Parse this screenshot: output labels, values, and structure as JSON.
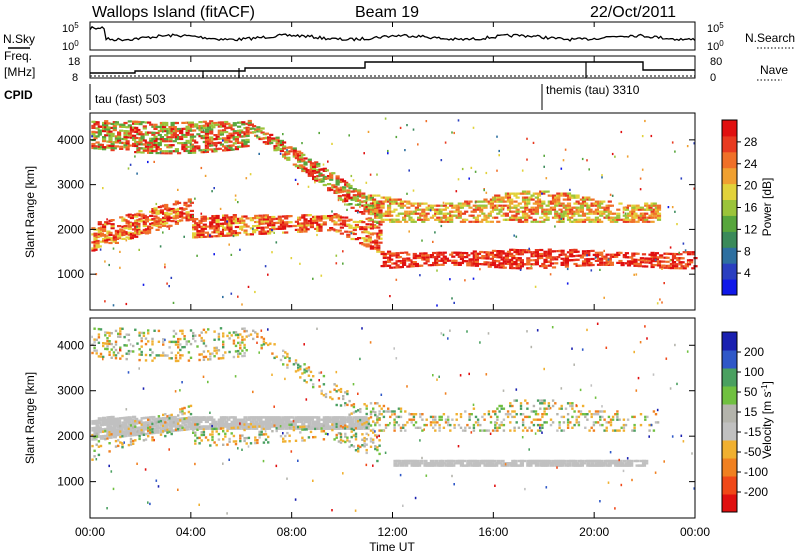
{
  "title": {
    "station": "Wallops Island (fitACF)",
    "beam": "Beam 19",
    "date": "22/Oct/2011"
  },
  "top_panels": {
    "nsky_label": "N.Sky",
    "nsearch_label": "N.Search",
    "freq_label_1": "Freq.",
    "freq_label_2": "[MHz]",
    "nave_label": "Nave",
    "cpid_label": "CPID",
    "nsky_ticks": [
      "10^5",
      "10^0"
    ],
    "nsearch_ticks": [
      "10^5",
      "10^0"
    ],
    "freq_ticks": [
      "18",
      "8"
    ],
    "nave_ticks": [
      "80",
      "0"
    ],
    "cpid_programs": [
      {
        "label": "tau (fast) 503",
        "start_hour": 0
      },
      {
        "label": "themis (tau) 3310",
        "start_hour": 18
      }
    ]
  },
  "chart_data": [
    {
      "type": "heatmap",
      "title": "Power",
      "ylabel": "Slant Range [km]",
      "xlabel": "",
      "xlim": [
        0,
        24
      ],
      "ylim": [
        200,
        4600
      ],
      "y_ticks": [
        1000,
        2000,
        3000,
        4000
      ],
      "colorbar": {
        "label": "Power [dB]",
        "ticks": [
          "4",
          "8",
          "12",
          "16",
          "20",
          "24",
          "28"
        ],
        "colors": [
          "#1018e8",
          "#2a3fc0",
          "#2d6fa0",
          "#3a8a5a",
          "#57a63c",
          "#9bc43a",
          "#e2d23a",
          "#f0a030",
          "#f07028",
          "#e83a20",
          "#e01010"
        ]
      },
      "structures": [
        {
          "name": "far band",
          "hours": [
            0,
            6
          ],
          "range_km": [
            3600,
            4300
          ],
          "power_db": 24
        },
        {
          "name": "main band",
          "hours": [
            0,
            11
          ],
          "range_km": [
            1500,
            2300
          ],
          "power_db": 26
        },
        {
          "name": "descending band",
          "hours": [
            7,
            12
          ],
          "range_km": [
            1300,
            3800
          ],
          "power_db": 20
        },
        {
          "name": "lower band",
          "hours": [
            11.5,
            24
          ],
          "range_km": [
            1100,
            1600
          ],
          "power_db": 30
        },
        {
          "name": "upper band",
          "hours": [
            11,
            22
          ],
          "range_km": [
            2100,
            2800
          ],
          "power_db": 22
        }
      ]
    },
    {
      "type": "heatmap",
      "title": "Velocity",
      "ylabel": "Slant Range [km]",
      "xlabel": "Time UT",
      "xlim": [
        0,
        24
      ],
      "ylim": [
        200,
        4600
      ],
      "y_ticks": [
        1000,
        2000,
        3000,
        4000
      ],
      "x_ticks": [
        "00:00",
        "04:00",
        "08:00",
        "12:00",
        "16:00",
        "20:00",
        "00:00"
      ],
      "colorbar": {
        "label": "Velocity [m s^-1]",
        "ticks": [
          "200",
          "100",
          "50",
          "15",
          "-15",
          "-50",
          "-100",
          "-200"
        ],
        "colors": [
          "#1a20b0",
          "#2f58c8",
          "#4aa060",
          "#70c040",
          "#b4b4ac",
          "#c0c0c0",
          "#f0b030",
          "#f08020",
          "#f04818",
          "#e01010"
        ]
      },
      "structures": [
        {
          "name": "ground scatter band",
          "hours": [
            0,
            11
          ],
          "range_km": [
            1900,
            2400
          ],
          "velocity_ms": 0
        },
        {
          "name": "ground scatter low",
          "hours": [
            12,
            22
          ],
          "range_km": [
            1350,
            1500
          ],
          "velocity_ms": 0
        },
        {
          "name": "upper scatter",
          "hours": [
            0,
            6
          ],
          "range_km": [
            3600,
            4400
          ],
          "velocity_ms": -60
        }
      ]
    }
  ]
}
